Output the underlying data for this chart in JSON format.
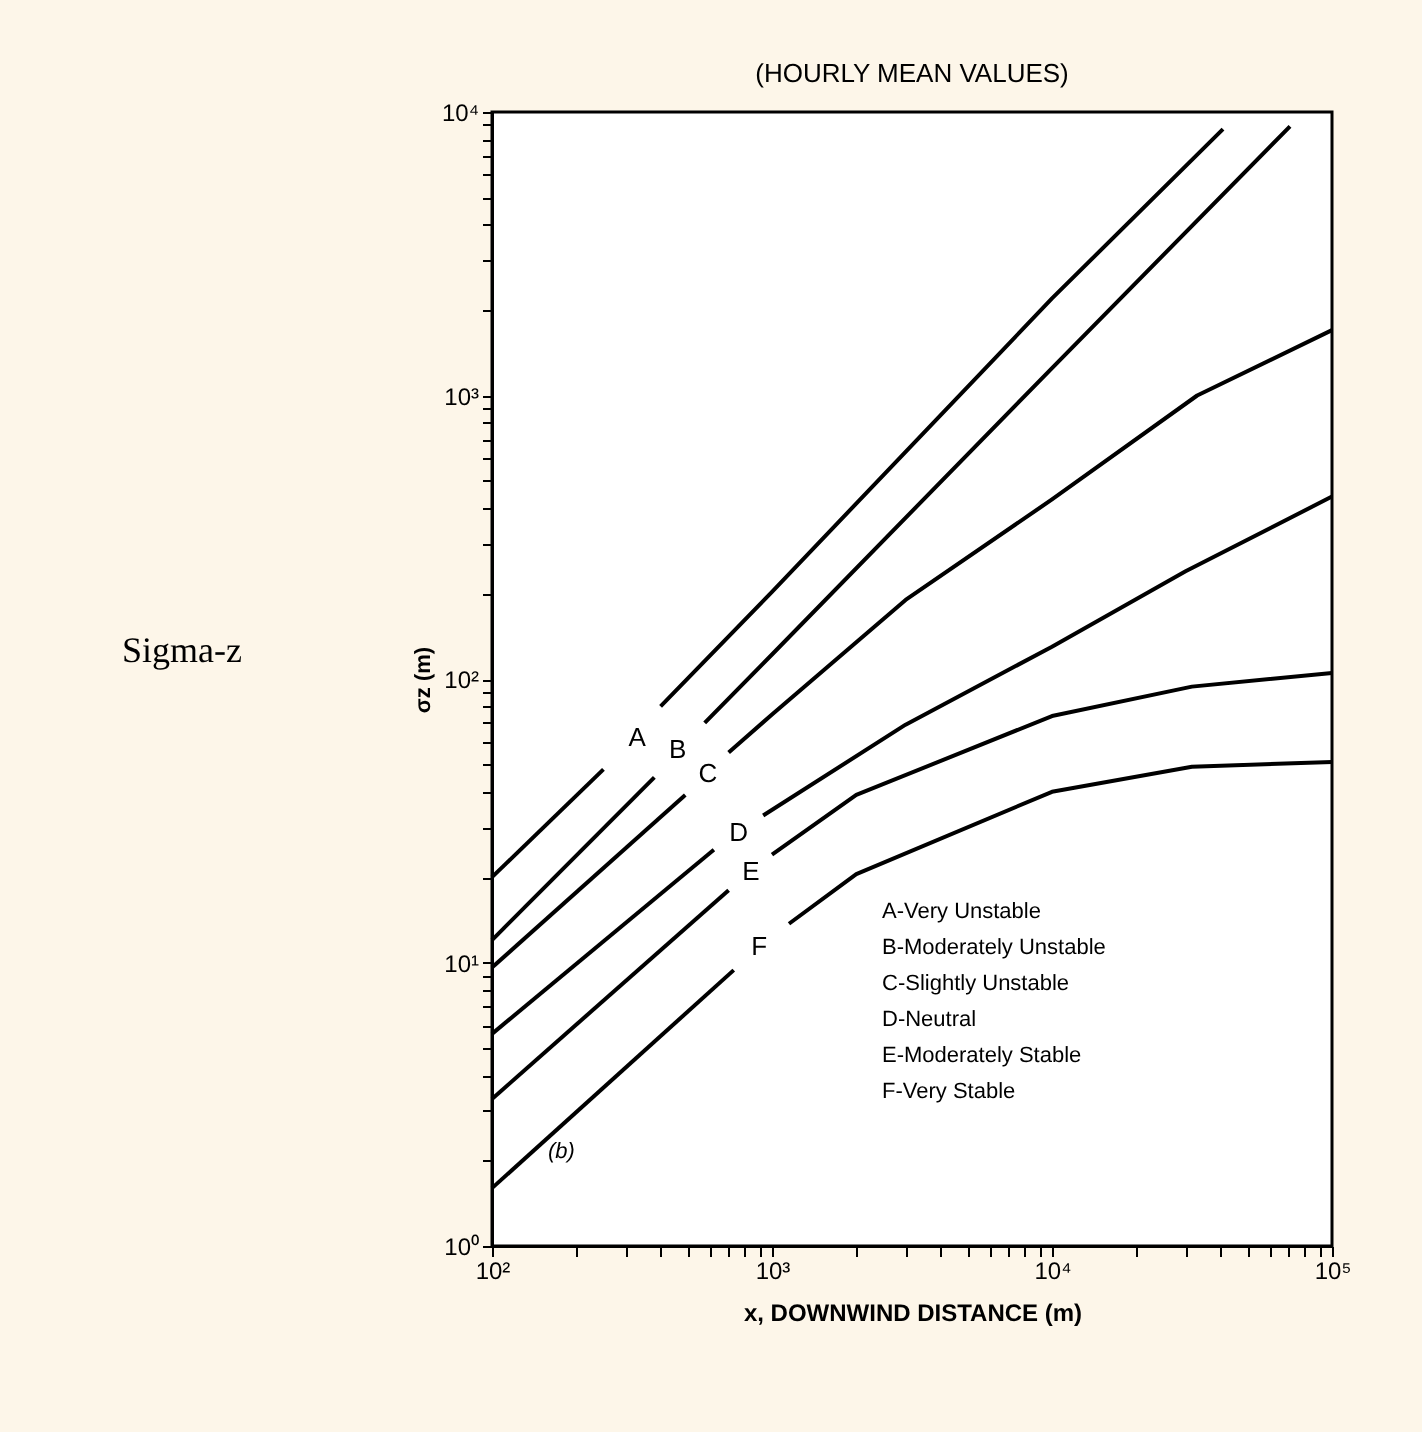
{
  "chart_data": {
    "type": "line",
    "title": "(HOURLY MEAN VALUES)",
    "xlabel": "x, DOWNWIND DISTANCE (m)",
    "ylabel": "σz (m)",
    "log": "xy",
    "grid": false,
    "legend": false,
    "marker": "none",
    "line_style": "solid",
    "xlim": [
      100,
      100000
    ],
    "ylim": [
      1,
      10000
    ],
    "xticks": [
      {
        "value": 100,
        "label": "10²"
      },
      {
        "value": 200,
        "label": null
      },
      {
        "value": 300,
        "label": null
      },
      {
        "value": 400,
        "label": null
      },
      {
        "value": 500,
        "label": null
      },
      {
        "value": 600,
        "label": null
      },
      {
        "value": 700,
        "label": null
      },
      {
        "value": 800,
        "label": null
      },
      {
        "value": 900,
        "label": null
      },
      {
        "value": 1000,
        "label": "10³"
      },
      {
        "value": 2000,
        "label": null
      },
      {
        "value": 3000,
        "label": null
      },
      {
        "value": 4000,
        "label": null
      },
      {
        "value": 5000,
        "label": null
      },
      {
        "value": 6000,
        "label": null
      },
      {
        "value": 7000,
        "label": null
      },
      {
        "value": 8000,
        "label": null
      },
      {
        "value": 9000,
        "label": null
      },
      {
        "value": 10000,
        "label": "10⁴"
      },
      {
        "value": 20000,
        "label": null
      },
      {
        "value": 30000,
        "label": null
      },
      {
        "value": 40000,
        "label": null
      },
      {
        "value": 50000,
        "label": null
      },
      {
        "value": 60000,
        "label": null
      },
      {
        "value": 70000,
        "label": null
      },
      {
        "value": 80000,
        "label": null
      },
      {
        "value": 90000,
        "label": null
      },
      {
        "value": 100000,
        "label": "10⁵"
      }
    ],
    "yticks": [
      {
        "value": 1,
        "label": "10⁰"
      },
      {
        "value": 2,
        "label": null
      },
      {
        "value": 3,
        "label": null
      },
      {
        "value": 4,
        "label": null
      },
      {
        "value": 5,
        "label": null
      },
      {
        "value": 6,
        "label": null
      },
      {
        "value": 7,
        "label": null
      },
      {
        "value": 8,
        "label": null
      },
      {
        "value": 9,
        "label": null
      },
      {
        "value": 10,
        "label": "10¹"
      },
      {
        "value": 20,
        "label": null
      },
      {
        "value": 30,
        "label": null
      },
      {
        "value": 40,
        "label": null
      },
      {
        "value": 50,
        "label": null
      },
      {
        "value": 60,
        "label": null
      },
      {
        "value": 70,
        "label": null
      },
      {
        "value": 80,
        "label": null
      },
      {
        "value": 90,
        "label": null
      },
      {
        "value": 100,
        "label": "10²"
      },
      {
        "value": 200,
        "label": null
      },
      {
        "value": 300,
        "label": null
      },
      {
        "value": 400,
        "label": null
      },
      {
        "value": 500,
        "label": null
      },
      {
        "value": 600,
        "label": null
      },
      {
        "value": 700,
        "label": null
      },
      {
        "value": 800,
        "label": null
      },
      {
        "value": 900,
        "label": null
      },
      {
        "value": 1000,
        "label": "10³"
      },
      {
        "value": 2000,
        "label": null
      },
      {
        "value": 3000,
        "label": null
      },
      {
        "value": 4000,
        "label": null
      },
      {
        "value": 5000,
        "label": null
      },
      {
        "value": 6000,
        "label": null
      },
      {
        "value": 7000,
        "label": null
      },
      {
        "value": 8000,
        "label": null
      },
      {
        "value": 9000,
        "label": null
      },
      {
        "value": 10000,
        "label": "10⁴"
      }
    ],
    "series": [
      {
        "name": "A",
        "color": "#000000",
        "x": [
          100,
          250,
          330,
          400,
          1000,
          10000,
          40800
        ],
        "values": [
          20,
          48,
          null,
          80,
          203,
          2200,
          8700
        ]
      },
      {
        "name": "B",
        "color": "#000000",
        "x": [
          100,
          380,
          460,
          575,
          1000,
          10000,
          70800
        ],
        "values": [
          12,
          45,
          null,
          70,
          122,
          1250,
          8900
        ]
      },
      {
        "name": "C",
        "color": "#000000",
        "x": [
          100,
          490,
          590,
          700,
          1000,
          3000,
          10000,
          33000,
          100000
        ],
        "values": [
          9.6,
          39,
          null,
          55,
          75,
          190,
          430,
          1000,
          1700
        ]
      },
      {
        "name": "D",
        "color": "#000000",
        "x": [
          100,
          620,
          760,
          930,
          3000,
          10000,
          30000,
          100000
        ],
        "values": [
          5.6,
          25,
          null,
          33,
          69,
          130,
          240,
          440
        ]
      },
      {
        "name": "E",
        "color": "#000000",
        "x": [
          100,
          700,
          840,
          1000,
          2000,
          10000,
          31600,
          100000
        ],
        "values": [
          3.3,
          18,
          null,
          24,
          39,
          74,
          94,
          105
        ]
      },
      {
        "name": "F",
        "color": "#000000",
        "x": [
          100,
          730,
          900,
          1150,
          2000,
          10000,
          31600,
          100000
        ],
        "values": [
          1.6,
          9.4,
          null,
          13.7,
          20.5,
          40,
          49,
          51
        ]
      }
    ],
    "annotations": [
      "Sigma-z",
      "A-Very Unstable",
      "B-Moderately Unstable",
      "C-Slightly Unstable",
      "D-Neutral",
      "E-Moderately Stable",
      "F-Very Stable",
      "(b)"
    ]
  }
}
